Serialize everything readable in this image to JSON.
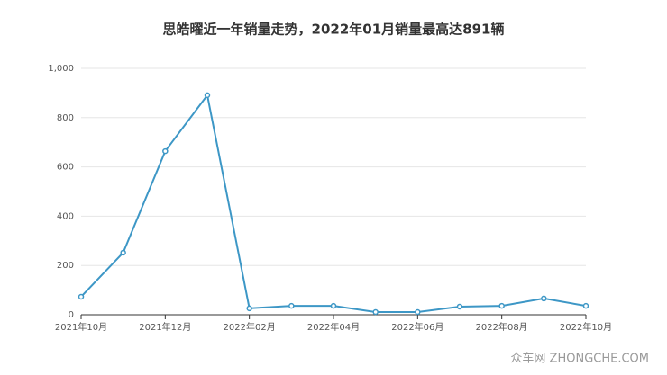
{
  "chart_data": {
    "type": "line",
    "title": "思皓曜近一年销量走势，2022年01月销量最高达891辆",
    "categories": [
      "2021年10月",
      null,
      "2021年12月",
      null,
      "2022年02月",
      null,
      "2022年04月",
      null,
      "2022年06月",
      null,
      "2022年08月",
      null,
      "2022年10月"
    ],
    "series": [
      {
        "name": "销量",
        "color": "#3d97c6",
        "values": [
          73,
          252,
          664,
          891,
          26,
          36,
          36,
          11,
          11,
          33,
          36,
          66,
          36
        ]
      }
    ],
    "ylim": [
      0,
      1000
    ],
    "yticks": [
      0,
      200,
      400,
      600,
      800,
      {
        "value": 1000,
        "label": "1,000"
      }
    ],
    "grid": true,
    "watermark": "众车网 ZHONGCHE.COM"
  }
}
